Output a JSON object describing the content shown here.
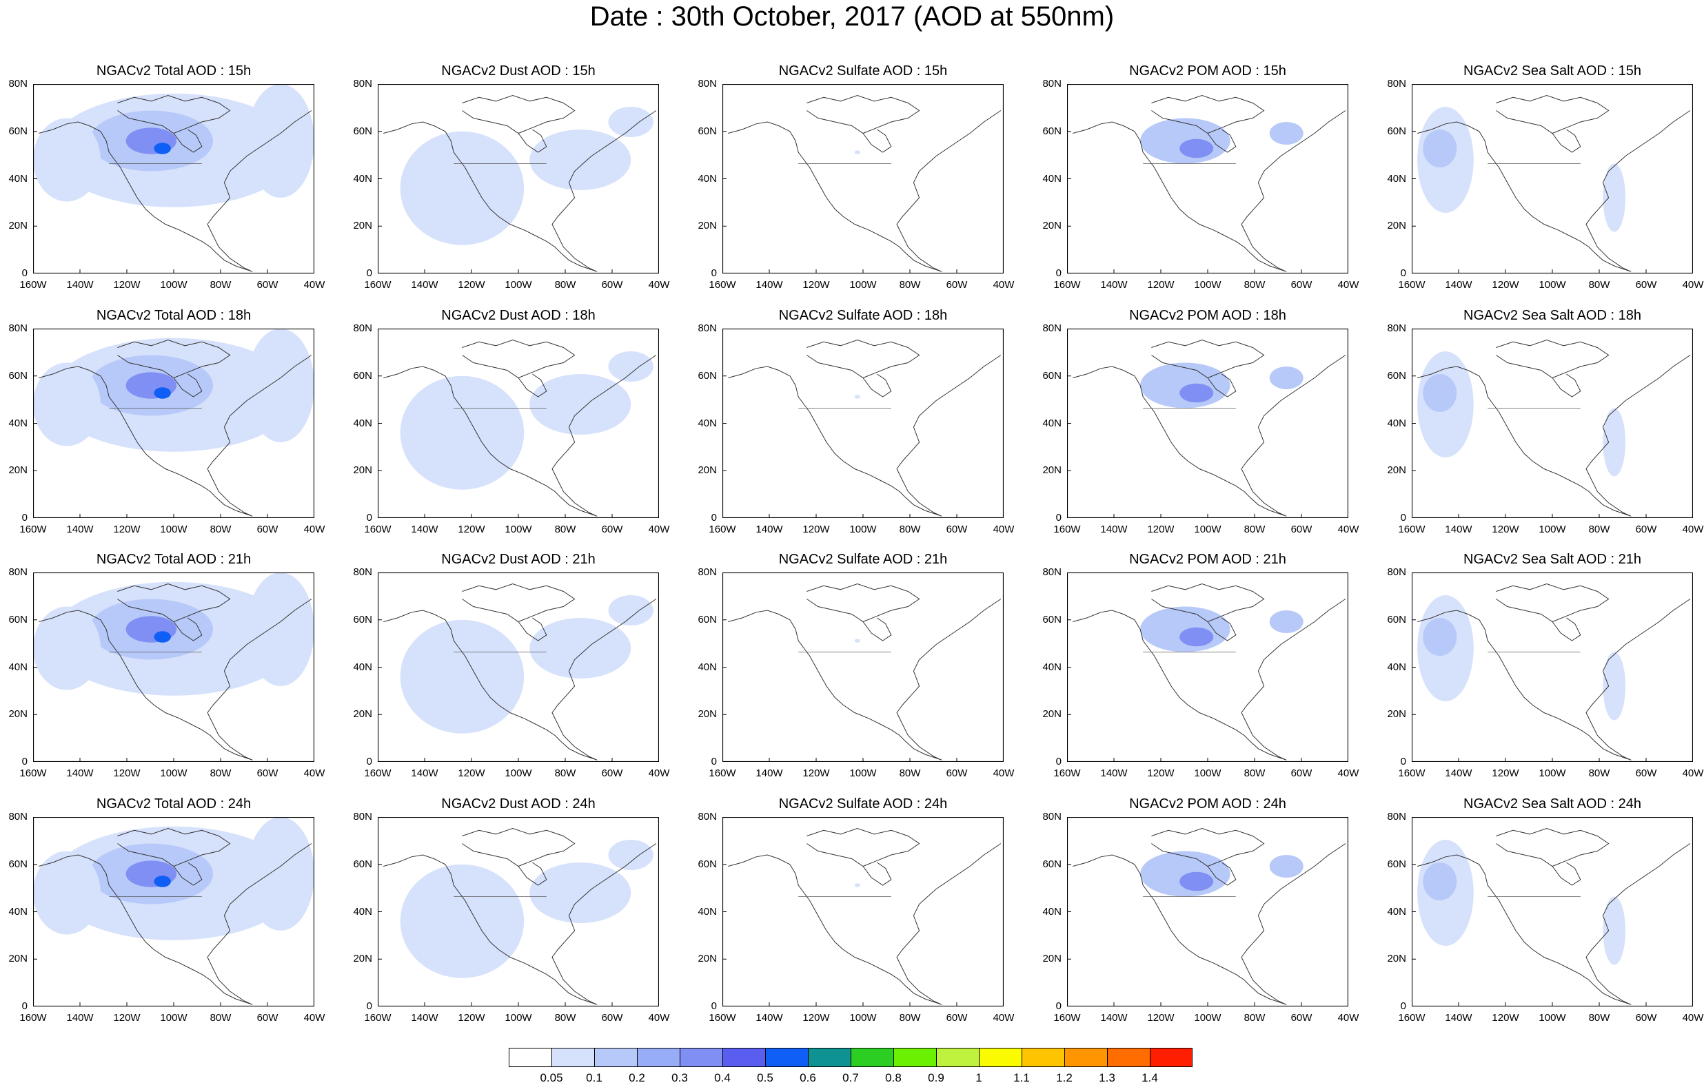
{
  "title": "Date : 30th October, 2017 (AOD at 550nm)",
  "lat_ticks": [
    "80N",
    "60N",
    "40N",
    "20N",
    "0"
  ],
  "lon_ticks": [
    "160W",
    "140W",
    "120W",
    "100W",
    "80W",
    "60W",
    "40W"
  ],
  "panels": [
    [
      "NGACv2 Total AOD : 15h",
      "NGACv2 Dust AOD : 15h",
      "NGACv2 Sulfate AOD : 15h",
      "NGACv2 POM AOD : 15h",
      "NGACv2 Sea Salt AOD : 15h"
    ],
    [
      "NGACv2 Total AOD : 18h",
      "NGACv2 Dust AOD : 18h",
      "NGACv2 Sulfate AOD : 18h",
      "NGACv2 POM AOD : 18h",
      "NGACv2 Sea Salt AOD : 18h"
    ],
    [
      "NGACv2 Total AOD : 21h",
      "NGACv2 Dust AOD : 21h",
      "NGACv2 Sulfate AOD : 21h",
      "NGACv2 POM AOD : 21h",
      "NGACv2 Sea Salt AOD : 21h"
    ],
    [
      "NGACv2 Total AOD : 24h",
      "NGACv2 Dust AOD : 24h",
      "NGACv2 Sulfate AOD : 24h",
      "NGACv2 POM AOD : 24h",
      "NGACv2 Sea Salt  AOD : 24h"
    ]
  ],
  "colorbar": {
    "labels": [
      "0.05",
      "0.1",
      "0.2",
      "0.3",
      "0.4",
      "0.5",
      "0.6",
      "0.7",
      "0.8",
      "0.9",
      "1",
      "1.1",
      "1.2",
      "1.3",
      "1.4"
    ],
    "colors": [
      "#ffffff",
      "#d6e1fb",
      "#b7c9f9",
      "#98adf7",
      "#7f8ff3",
      "#5a5ef0",
      "#0f5ef6",
      "#0f9292",
      "#2ccf21",
      "#6af000",
      "#bff23e",
      "#fafb00",
      "#ffc400",
      "#ff9500",
      "#ff6d00",
      "#ff1e00"
    ]
  }
}
